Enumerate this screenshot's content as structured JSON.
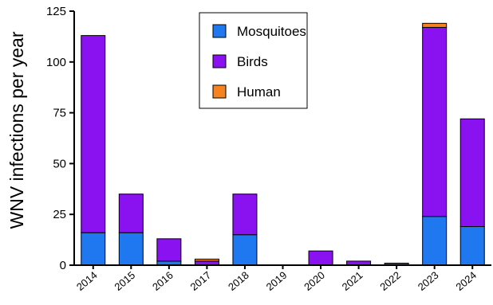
{
  "chart_data": {
    "type": "bar",
    "stacked": true,
    "title": "",
    "xlabel": "",
    "ylabel": "WNV infections per year",
    "categories": [
      "2014",
      "2015",
      "2016",
      "2017",
      "2018",
      "2019",
      "2020",
      "2021",
      "2022",
      "2023",
      "2024"
    ],
    "series": [
      {
        "name": "Mosquitoes",
        "color": "#1f78f0",
        "values": [
          16,
          16,
          2,
          0,
          15,
          0,
          0,
          0,
          0,
          24,
          19
        ]
      },
      {
        "name": "Birds",
        "color": "#8a12f0",
        "values": [
          97,
          19,
          11,
          2,
          20,
          0,
          7,
          2,
          1,
          93,
          53
        ]
      },
      {
        "name": "Human",
        "color": "#f5831f",
        "values": [
          0,
          0,
          0,
          1,
          0,
          0,
          0,
          0,
          0,
          2,
          0
        ]
      }
    ],
    "ylim": [
      0,
      125
    ],
    "yticks": [
      "0",
      "25",
      "50",
      "75",
      "100",
      "125"
    ],
    "grid": false,
    "legend_position": "top-center"
  }
}
